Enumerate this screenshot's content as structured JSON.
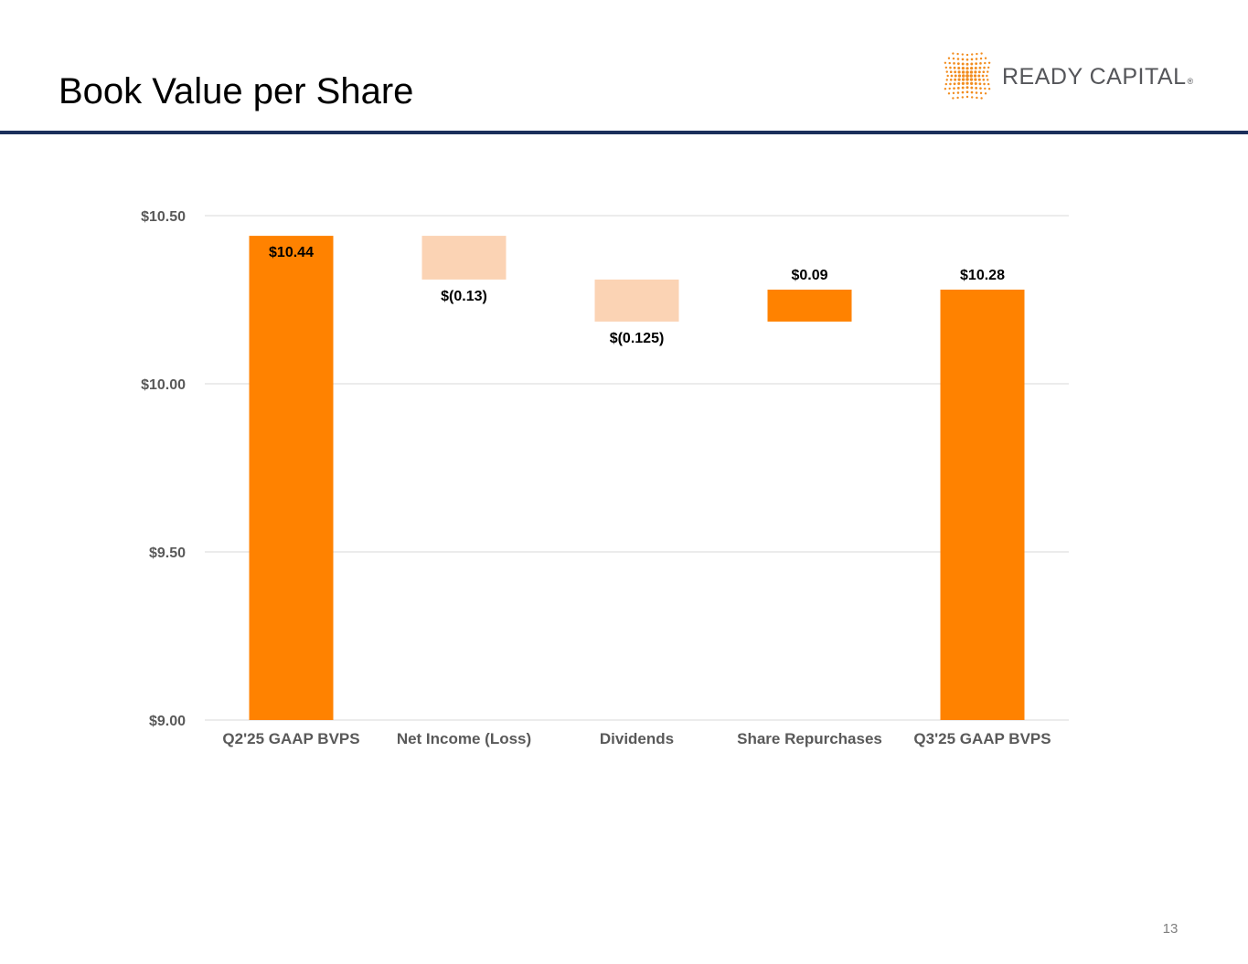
{
  "page": {
    "title": "Book Value per Share",
    "page_number": "13"
  },
  "logo": {
    "text": "READY CAPITAL",
    "registered": "®",
    "dot_color": "#f28c1e"
  },
  "colors": {
    "bar_orange": "#ff8200",
    "bar_light": "#fbd3b4",
    "rule": "#1b2f5b",
    "grid": "#d9d9d9",
    "axis_text": "#595959"
  },
  "chart_data": {
    "type": "waterfall",
    "title": "",
    "xlabel": "",
    "ylabel": "",
    "ylim": [
      9.0,
      10.5
    ],
    "yticks": [
      {
        "value": 10.5,
        "label": "$10.50"
      },
      {
        "value": 10.0,
        "label": "$10.00"
      },
      {
        "value": 9.5,
        "label": "$9.50"
      },
      {
        "value": 9.0,
        "label": "$9.00"
      }
    ],
    "grid": true,
    "legend": "none",
    "categories": [
      "Q2'25 GAAP BVPS",
      "Net Income (Loss)",
      "Dividends",
      "Share Repurchases",
      "Q3'25 GAAP BVPS"
    ],
    "bars": [
      {
        "category": "Q2'25 GAAP BVPS",
        "kind": "total",
        "start": 9.0,
        "end": 10.44,
        "label": "$10.44",
        "label_pos": "inside-top",
        "color": "#ff8200"
      },
      {
        "category": "Net Income (Loss)",
        "kind": "decrease",
        "start": 10.44,
        "end": 10.31,
        "label": "$(0.13)",
        "label_pos": "below",
        "color": "#fbd3b4"
      },
      {
        "category": "Dividends",
        "kind": "decrease",
        "start": 10.31,
        "end": 10.185,
        "label": "$(0.125)",
        "label_pos": "below",
        "color": "#fbd3b4"
      },
      {
        "category": "Share Repurchases",
        "kind": "increase",
        "start": 10.185,
        "end": 10.28,
        "label": "$0.09",
        "label_pos": "above",
        "color": "#ff8200"
      },
      {
        "category": "Q3'25 GAAP BVPS",
        "kind": "total",
        "start": 9.0,
        "end": 10.28,
        "label": "$10.28",
        "label_pos": "above",
        "color": "#ff8200"
      }
    ]
  }
}
